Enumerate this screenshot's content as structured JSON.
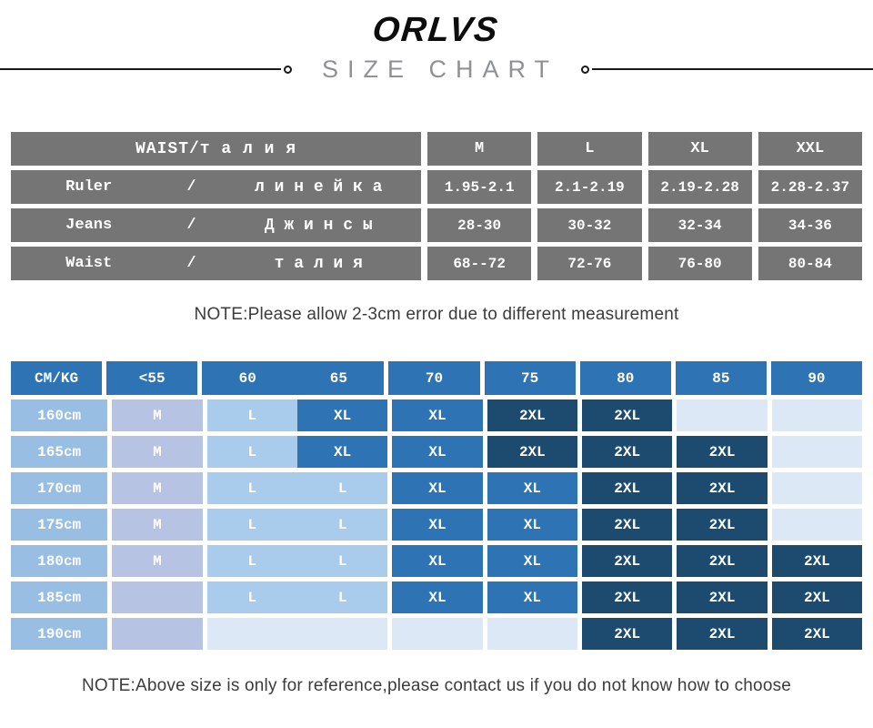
{
  "header": {
    "brand": "ORLVS",
    "title": "SIZE CHART"
  },
  "waist_table": {
    "corner_header": "WAIST/т а л и я",
    "size_headers": [
      "M",
      "L",
      "XL",
      "XXL"
    ],
    "rows": [
      {
        "en": "Ruler",
        "slash": "/",
        "ru": "л и н е й к а",
        "values": [
          "1.95-2.1",
          "2.1-2.19",
          "2.19-2.28",
          "2.28-2.37"
        ]
      },
      {
        "en": "Jeans",
        "slash": "/",
        "ru": "Д ж и н с ы",
        "values": [
          "28-30",
          "30-32",
          "32-34",
          "34-36"
        ]
      },
      {
        "en": "Waist",
        "slash": "/",
        "ru": "т а л и я",
        "values": [
          "68--72",
          "72-76",
          "76-80",
          "80-84"
        ]
      }
    ]
  },
  "note_measurement": "NOTE:Please allow 2-3cm error due to different measurement",
  "size_grid": {
    "col_headers": [
      "CM/KG",
      "<55",
      "60",
      "65",
      "70",
      "75",
      "80",
      "85",
      "90"
    ],
    "merged_header_columns": [
      "60",
      "65"
    ],
    "legend_colors": {
      "header": "#2e73b3",
      "row_label": "#98bfe3",
      "M": "#b6c3e3",
      "L": "#a9cbec",
      "XL": "#2e74b5",
      "2XL": "#1d4b70",
      "empty": "#dce8f5"
    },
    "rows": [
      {
        "label": "160cm",
        "cells": [
          {
            "t": "M",
            "s": "m"
          },
          {
            "t": "L",
            "s": "l"
          },
          {
            "t": "XL",
            "s": "xl"
          },
          {
            "t": "XL",
            "s": "xl"
          },
          {
            "t": "2XL",
            "s": "2xl"
          },
          {
            "t": "2XL",
            "s": "2xl"
          },
          {
            "t": "",
            "s": "e"
          },
          {
            "t": "",
            "s": "e"
          }
        ]
      },
      {
        "label": "165cm",
        "cells": [
          {
            "t": "M",
            "s": "m"
          },
          {
            "t": "L",
            "s": "l"
          },
          {
            "t": "XL",
            "s": "xl"
          },
          {
            "t": "XL",
            "s": "xl"
          },
          {
            "t": "2XL",
            "s": "2xl"
          },
          {
            "t": "2XL",
            "s": "2xl"
          },
          {
            "t": "2XL",
            "s": "2xl"
          },
          {
            "t": "",
            "s": "e"
          }
        ]
      },
      {
        "label": "170cm",
        "cells": [
          {
            "t": "M",
            "s": "m"
          },
          {
            "t": "L",
            "s": "l"
          },
          {
            "t": "L",
            "s": "l"
          },
          {
            "t": "XL",
            "s": "xl"
          },
          {
            "t": "XL",
            "s": "xl"
          },
          {
            "t": "2XL",
            "s": "2xl"
          },
          {
            "t": "2XL",
            "s": "2xl"
          },
          {
            "t": "",
            "s": "e"
          }
        ]
      },
      {
        "label": "175cm",
        "cells": [
          {
            "t": "M",
            "s": "m"
          },
          {
            "t": "L",
            "s": "l"
          },
          {
            "t": "L",
            "s": "l"
          },
          {
            "t": "XL",
            "s": "xl"
          },
          {
            "t": "XL",
            "s": "xl"
          },
          {
            "t": "2XL",
            "s": "2xl"
          },
          {
            "t": "2XL",
            "s": "2xl"
          },
          {
            "t": "",
            "s": "e"
          }
        ]
      },
      {
        "label": "180cm",
        "cells": [
          {
            "t": "M",
            "s": "m"
          },
          {
            "t": "L",
            "s": "l"
          },
          {
            "t": "L",
            "s": "l"
          },
          {
            "t": "XL",
            "s": "xl"
          },
          {
            "t": "XL",
            "s": "xl"
          },
          {
            "t": "2XL",
            "s": "2xl"
          },
          {
            "t": "2XL",
            "s": "2xl"
          },
          {
            "t": "2XL",
            "s": "2xl"
          }
        ]
      },
      {
        "label": "185cm",
        "cells": [
          {
            "t": "",
            "s": "m"
          },
          {
            "t": "L",
            "s": "l"
          },
          {
            "t": "L",
            "s": "l"
          },
          {
            "t": "XL",
            "s": "xl"
          },
          {
            "t": "XL",
            "s": "xl"
          },
          {
            "t": "2XL",
            "s": "2xl"
          },
          {
            "t": "2XL",
            "s": "2xl"
          },
          {
            "t": "2XL",
            "s": "2xl"
          }
        ]
      },
      {
        "label": "190cm",
        "cells": [
          {
            "t": "",
            "s": "m"
          },
          {
            "t": "",
            "s": "e"
          },
          {
            "t": "",
            "s": "e"
          },
          {
            "t": "",
            "s": "e"
          },
          {
            "t": "",
            "s": "e"
          },
          {
            "t": "2XL",
            "s": "2xl"
          },
          {
            "t": "2XL",
            "s": "2xl"
          },
          {
            "t": "2XL",
            "s": "2xl"
          }
        ]
      }
    ]
  },
  "note_reference": "NOTE:Above size is only for reference,please contact us if you do not know how to choose"
}
